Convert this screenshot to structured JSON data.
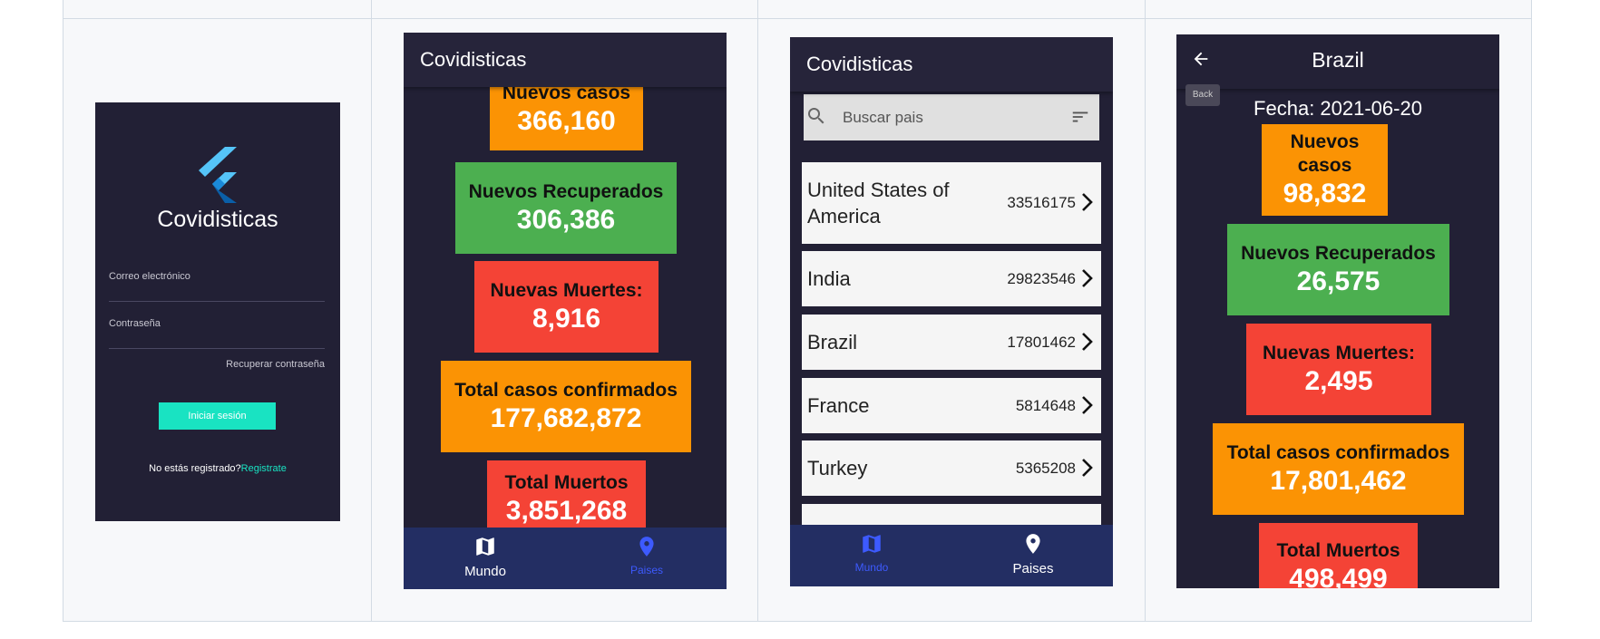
{
  "login": {
    "app_name": "Covidisticas",
    "email_label": "Correo electrónico",
    "password_label": "Contraseña",
    "recover_label": "Recuperar contraseña",
    "login_button": "Iniciar sesión",
    "not_registered": "No estás registrado?",
    "register_link": "Registrate",
    "logo_icon": "flutter-logo-icon"
  },
  "world": {
    "title": "Covidisticas",
    "stats": [
      {
        "label": "Nuevos casos",
        "value": "366,160",
        "color": "#fb9304"
      },
      {
        "label": "Nuevos Recuperados",
        "value": "306,386",
        "color": "#4caf50"
      },
      {
        "label": "Nuevas Muertes:",
        "value": "8,916",
        "color": "#f44336"
      },
      {
        "label": "Total casos confirmados",
        "value": "177,682,872",
        "color": "#fb9304"
      },
      {
        "label": "Total Muertos",
        "value": "3,851,268",
        "color": "#f44336"
      }
    ]
  },
  "countries": {
    "title": "Covidisticas",
    "search_placeholder": "Buscar pais",
    "rows": [
      {
        "name": "United States of America",
        "count": "33516175"
      },
      {
        "name": "India",
        "count": "29823546"
      },
      {
        "name": "Brazil",
        "count": "17801462"
      },
      {
        "name": "France",
        "count": "5814648"
      },
      {
        "name": "Turkey",
        "count": "5365208"
      }
    ]
  },
  "detail": {
    "title": "Brazil",
    "back_tooltip": "Back",
    "date": "Fecha: 2021-06-20",
    "stats": [
      {
        "label": "Nuevos casos",
        "value": "98,832",
        "color": "#fb9304"
      },
      {
        "label": "Nuevos Recuperados",
        "value": "26,575",
        "color": "#4caf50"
      },
      {
        "label": "Nuevas Muertes:",
        "value": "2,495",
        "color": "#f44336"
      },
      {
        "label": "Total casos confirmados",
        "value": "17,801,462",
        "color": "#fb9304"
      },
      {
        "label": "Total Muertos",
        "value": "498,499",
        "color": "#f44336"
      }
    ]
  },
  "nav": {
    "world_label": "Mundo",
    "countries_label": "Paises",
    "active_color": "#3d5afe"
  }
}
